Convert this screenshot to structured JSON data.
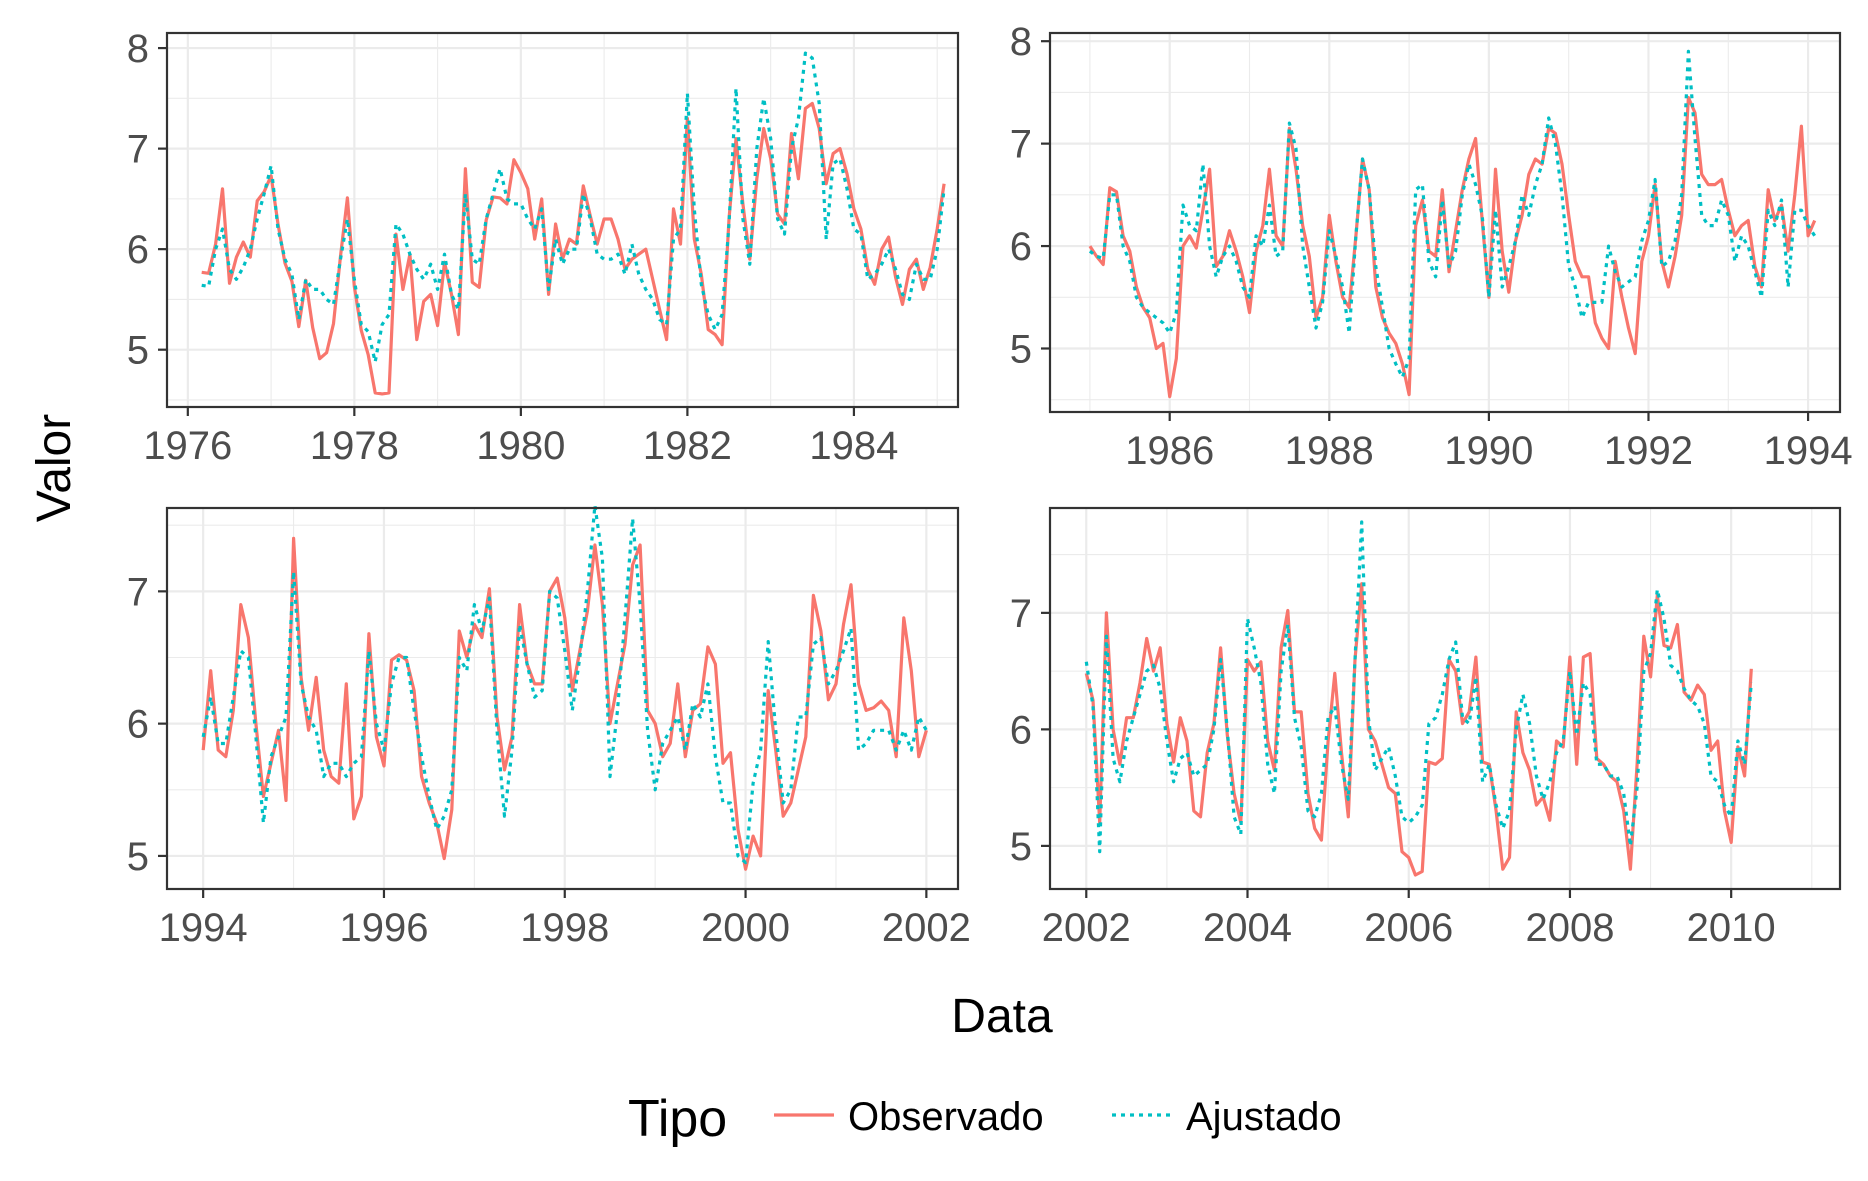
{
  "chart_data": {
    "type": "line",
    "xlabel": "Data",
    "ylabel": "Valor",
    "legend": {
      "title": "Tipo",
      "position": "bottom",
      "entries": [
        {
          "label": "Observado",
          "color": "#F8766D",
          "linetype": "solid"
        },
        {
          "label": "Ajustado",
          "color": "#00BFC4",
          "linetype": "dotted"
        }
      ]
    },
    "grid": true,
    "theme": "bw",
    "panels": [
      {
        "xlim": [
          1975.75,
          1985.25
        ],
        "ylim": [
          4.43,
          8.15
        ],
        "xticks": [
          1976,
          1978,
          1980,
          1982,
          1984
        ],
        "xtick_labels": [
          "1976",
          "1978",
          "1980",
          "1982",
          "1984"
        ],
        "yticks": [
          5,
          6,
          7,
          8
        ],
        "ytick_labels": [
          "5",
          "6",
          "7",
          "8"
        ],
        "start": 1976.1667,
        "observed": [
          5.77,
          5.76,
          6.05,
          6.6,
          5.66,
          5.92,
          6.07,
          5.92,
          6.48,
          6.57,
          6.73,
          6.25,
          5.86,
          5.68,
          5.23,
          5.69,
          5.22,
          4.91,
          4.97,
          5.26,
          5.93,
          6.51,
          5.63,
          5.19,
          4.95,
          4.57,
          4.56,
          4.57,
          6.15,
          5.6,
          5.95,
          5.1,
          5.48,
          5.55,
          5.24,
          5.87,
          5.55,
          5.15,
          6.8,
          5.67,
          5.62,
          6.29,
          6.52,
          6.51,
          6.45,
          6.89,
          6.76,
          6.6,
          6.1,
          6.5,
          5.55,
          6.25,
          5.9,
          6.1,
          6.05,
          6.63,
          6.33,
          6.05,
          6.3,
          6.3,
          6.1,
          5.8,
          5.9,
          5.95,
          6.0,
          5.7,
          5.4,
          5.1,
          6.4,
          6.05,
          7.3,
          6.1,
          5.75,
          5.2,
          5.15,
          5.05,
          6.3,
          7.1,
          6.45,
          5.9,
          6.7,
          7.2,
          6.9,
          6.35,
          6.25,
          7.15,
          6.7,
          7.4,
          7.45,
          7.2,
          6.65,
          6.95,
          7.0,
          6.75,
          6.4,
          6.2,
          5.8,
          5.65,
          6.0,
          6.12,
          5.72,
          5.45,
          5.8,
          5.9,
          5.6,
          5.82,
          6.2,
          6.65
        ],
        "fitted": [
          5.64,
          5.63,
          6.0,
          6.2,
          5.8,
          5.7,
          5.82,
          6.0,
          6.3,
          6.55,
          6.83,
          6.2,
          5.9,
          5.75,
          5.3,
          5.7,
          5.6,
          5.6,
          5.5,
          5.45,
          5.9,
          6.3,
          5.7,
          5.25,
          5.18,
          4.88,
          5.25,
          5.35,
          6.25,
          6.15,
          5.95,
          5.8,
          5.7,
          5.85,
          5.6,
          5.95,
          5.55,
          5.4,
          6.55,
          5.9,
          5.85,
          6.3,
          6.55,
          6.8,
          6.5,
          6.45,
          6.45,
          6.3,
          6.2,
          6.4,
          5.6,
          6.1,
          5.85,
          6.0,
          6.0,
          6.55,
          6.3,
          5.95,
          5.9,
          5.9,
          5.95,
          5.75,
          6.05,
          5.75,
          5.6,
          5.5,
          5.3,
          5.25,
          6.1,
          6.2,
          7.55,
          6.4,
          5.65,
          5.35,
          5.2,
          5.35,
          6.25,
          7.6,
          6.3,
          5.85,
          7.0,
          7.5,
          7.1,
          6.3,
          6.15,
          7.0,
          7.3,
          7.95,
          7.9,
          7.45,
          6.1,
          6.85,
          6.9,
          6.6,
          6.2,
          6.15,
          5.7,
          5.75,
          5.85,
          6.0,
          5.8,
          5.55,
          5.5,
          5.85,
          5.7,
          5.7,
          6.0,
          6.6
        ]
      },
      {
        "xlim": [
          1984.5,
          1994.4
        ],
        "ylim": [
          4.38,
          8.08
        ],
        "xticks": [
          1986,
          1988,
          1990,
          1992,
          1994
        ],
        "xtick_labels": [
          "1986",
          "1988",
          "1990",
          "1992",
          "1994"
        ],
        "yticks": [
          5,
          6,
          7,
          8
        ],
        "ytick_labels": [
          "5",
          "6",
          "7",
          "8"
        ],
        "start": 1985.0,
        "observed": [
          6.0,
          5.9,
          5.82,
          6.57,
          6.53,
          6.1,
          5.95,
          5.6,
          5.4,
          5.3,
          5.0,
          5.05,
          4.53,
          4.9,
          6.0,
          6.1,
          5.98,
          6.35,
          6.75,
          5.8,
          5.9,
          6.15,
          5.95,
          5.7,
          5.35,
          5.95,
          6.2,
          6.75,
          6.1,
          6.0,
          7.15,
          6.75,
          6.2,
          5.9,
          5.3,
          5.5,
          6.3,
          5.85,
          5.5,
          5.4,
          6.1,
          6.85,
          6.55,
          5.6,
          5.3,
          5.15,
          5.05,
          4.85,
          4.55,
          6.2,
          6.45,
          5.95,
          5.9,
          6.55,
          5.75,
          6.15,
          6.55,
          6.85,
          7.05,
          6.25,
          5.5,
          6.75,
          5.95,
          5.55,
          6.05,
          6.3,
          6.7,
          6.85,
          6.8,
          7.15,
          7.1,
          6.8,
          6.3,
          5.85,
          5.7,
          5.7,
          5.25,
          5.1,
          5.0,
          5.85,
          5.5,
          5.2,
          4.95,
          5.85,
          6.1,
          6.6,
          5.85,
          5.6,
          5.9,
          6.3,
          7.45,
          7.3,
          6.7,
          6.6,
          6.6,
          6.65,
          6.35,
          6.1,
          6.2,
          6.25,
          5.8,
          5.6,
          6.55,
          6.25,
          6.4,
          5.95,
          6.5,
          7.17,
          6.1,
          6.25
        ],
        "fitted": [
          5.95,
          5.9,
          5.88,
          6.5,
          6.5,
          6.0,
          5.85,
          5.5,
          5.4,
          5.35,
          5.3,
          5.25,
          5.15,
          5.35,
          6.4,
          6.2,
          6.15,
          6.8,
          6.0,
          5.7,
          5.9,
          6.0,
          5.85,
          5.6,
          5.5,
          6.1,
          6.0,
          6.4,
          5.9,
          5.95,
          7.2,
          6.95,
          6.0,
          5.6,
          5.2,
          5.45,
          6.15,
          5.9,
          5.6,
          5.15,
          6.1,
          6.85,
          6.55,
          5.8,
          5.4,
          5.0,
          4.85,
          4.72,
          4.9,
          6.55,
          6.6,
          5.85,
          5.7,
          6.45,
          5.8,
          5.95,
          6.5,
          6.8,
          6.6,
          6.3,
          5.5,
          6.35,
          5.6,
          5.8,
          6.05,
          6.5,
          6.3,
          6.6,
          6.8,
          7.25,
          7.0,
          6.5,
          5.8,
          5.6,
          5.3,
          5.45,
          5.45,
          5.45,
          6.0,
          5.75,
          5.6,
          5.65,
          5.7,
          6.05,
          6.25,
          6.65,
          5.8,
          5.85,
          6.05,
          6.5,
          7.9,
          7.05,
          6.3,
          6.2,
          6.2,
          6.45,
          6.3,
          5.85,
          6.1,
          6.0,
          5.75,
          5.5,
          6.35,
          6.2,
          6.45,
          5.6,
          6.35,
          6.35,
          6.2,
          6.1
        ]
      },
      {
        "xlim": [
          1993.6,
          2002.35
        ],
        "ylim": [
          4.75,
          7.63
        ],
        "xticks": [
          1994,
          1996,
          1998,
          2000,
          2002
        ],
        "xtick_labels": [
          "1994",
          "1996",
          "1998",
          "2000",
          "2002"
        ],
        "yticks": [
          5,
          6,
          7
        ],
        "ytick_labels": [
          "5",
          "6",
          "7"
        ],
        "start": 1994.0,
        "observed": [
          5.8,
          6.4,
          5.8,
          5.75,
          6.1,
          6.9,
          6.65,
          6.0,
          5.45,
          5.7,
          5.95,
          5.42,
          7.4,
          6.35,
          5.95,
          6.35,
          5.8,
          5.6,
          5.55,
          6.3,
          5.28,
          5.45,
          6.68,
          5.9,
          5.68,
          6.48,
          6.52,
          6.48,
          6.25,
          5.6,
          5.4,
          5.25,
          4.98,
          5.35,
          6.7,
          6.5,
          6.75,
          6.65,
          7.02,
          6.05,
          5.65,
          5.9,
          6.9,
          6.45,
          6.3,
          6.3,
          7.0,
          7.1,
          6.8,
          6.25,
          6.55,
          6.85,
          7.35,
          6.9,
          6.0,
          6.3,
          6.6,
          7.2,
          7.35,
          6.1,
          6.0,
          5.75,
          5.85,
          6.3,
          5.75,
          6.1,
          6.15,
          6.58,
          6.45,
          5.7,
          5.78,
          5.2,
          4.9,
          5.15,
          5.0,
          6.25,
          5.8,
          5.3,
          5.4,
          5.65,
          5.9,
          6.97,
          6.7,
          6.18,
          6.3,
          6.75,
          7.05,
          6.3,
          6.1,
          6.12,
          6.17,
          6.1,
          5.75,
          6.8,
          6.4,
          5.75,
          5.95
        ],
        "fitted": [
          5.9,
          6.2,
          5.85,
          5.85,
          6.2,
          6.55,
          6.5,
          5.9,
          5.25,
          5.75,
          5.9,
          6.05,
          7.15,
          6.3,
          6.05,
          5.95,
          5.6,
          5.7,
          5.7,
          5.6,
          5.7,
          5.75,
          6.55,
          6.0,
          5.8,
          6.3,
          6.5,
          6.5,
          6.1,
          5.75,
          5.45,
          5.2,
          5.3,
          5.5,
          6.5,
          6.4,
          6.9,
          6.7,
          6.95,
          5.95,
          5.3,
          5.8,
          6.75,
          6.45,
          6.2,
          6.25,
          7.0,
          6.95,
          6.55,
          6.1,
          6.5,
          7.0,
          7.65,
          7.25,
          5.6,
          6.1,
          6.8,
          7.55,
          6.9,
          5.95,
          5.5,
          5.85,
          5.95,
          6.05,
          5.8,
          6.15,
          6.05,
          6.3,
          5.75,
          5.4,
          5.4,
          5.0,
          4.95,
          5.55,
          5.8,
          6.62,
          5.95,
          5.4,
          5.5,
          6.05,
          6.05,
          6.6,
          6.65,
          6.3,
          6.4,
          6.55,
          6.72,
          5.8,
          5.85,
          5.95,
          5.95,
          5.95,
          5.8,
          5.95,
          5.8,
          6.05,
          5.95
        ]
      },
      {
        "xlim": [
          2001.55,
          2011.35
        ],
        "ylim": [
          4.63,
          7.9
        ],
        "xticks": [
          2002,
          2004,
          2006,
          2008,
          2010
        ],
        "xtick_labels": [
          "2002",
          "2004",
          "2006",
          "2008",
          "2010"
        ],
        "yticks": [
          5,
          6,
          7
        ],
        "ytick_labels": [
          "5",
          "6",
          "7"
        ],
        "start": 2002.0,
        "observed": [
          6.48,
          6.25,
          5.2,
          7.0,
          6.0,
          5.7,
          6.1,
          6.1,
          6.4,
          6.78,
          6.5,
          6.7,
          6.05,
          5.72,
          6.1,
          5.9,
          5.3,
          5.25,
          5.8,
          6.05,
          6.7,
          5.95,
          5.45,
          5.2,
          6.6,
          6.5,
          6.58,
          5.9,
          5.65,
          6.7,
          7.02,
          6.15,
          6.15,
          5.45,
          5.15,
          5.05,
          5.9,
          6.48,
          5.8,
          5.25,
          6.6,
          7.25,
          6.0,
          5.9,
          5.7,
          5.5,
          5.45,
          4.95,
          4.9,
          4.75,
          4.78,
          5.72,
          5.7,
          5.75,
          6.6,
          6.5,
          6.05,
          6.15,
          6.62,
          5.72,
          5.7,
          5.3,
          4.8,
          4.9,
          6.15,
          5.8,
          5.65,
          5.35,
          5.42,
          5.22,
          5.9,
          5.85,
          6.62,
          5.7,
          6.62,
          6.65,
          5.75,
          5.7,
          5.6,
          5.55,
          5.3,
          4.8,
          5.7,
          6.8,
          6.45,
          7.15,
          6.72,
          6.7,
          6.9,
          6.32,
          6.25,
          6.38,
          6.3,
          5.82,
          5.9,
          5.3,
          5.03,
          5.85,
          5.6,
          6.52
        ],
        "fitted": [
          6.58,
          6.2,
          4.95,
          6.8,
          5.75,
          5.55,
          5.9,
          6.1,
          6.3,
          6.5,
          6.55,
          6.35,
          5.9,
          5.55,
          5.75,
          5.8,
          5.6,
          5.65,
          5.7,
          6.0,
          6.6,
          6.0,
          5.25,
          5.1,
          6.95,
          6.7,
          6.4,
          5.7,
          5.45,
          6.5,
          6.9,
          6.1,
          5.85,
          5.3,
          5.25,
          5.45,
          6.1,
          6.2,
          5.7,
          5.4,
          6.6,
          7.78,
          6.1,
          5.65,
          5.75,
          5.85,
          5.6,
          5.25,
          5.2,
          5.25,
          5.35,
          6.05,
          6.1,
          6.3,
          6.6,
          6.75,
          6.1,
          6.05,
          6.45,
          5.55,
          5.7,
          5.35,
          5.15,
          5.3,
          6.0,
          6.3,
          6.05,
          5.6,
          5.4,
          5.55,
          5.8,
          5.9,
          6.5,
          5.95,
          6.4,
          6.3,
          5.7,
          5.7,
          5.6,
          5.6,
          5.45,
          5.0,
          5.5,
          6.5,
          6.65,
          7.2,
          6.95,
          6.55,
          6.5,
          6.35,
          6.25,
          6.2,
          6.05,
          5.6,
          5.55,
          5.35,
          5.25,
          5.9,
          5.7,
          6.4
        ]
      }
    ]
  }
}
